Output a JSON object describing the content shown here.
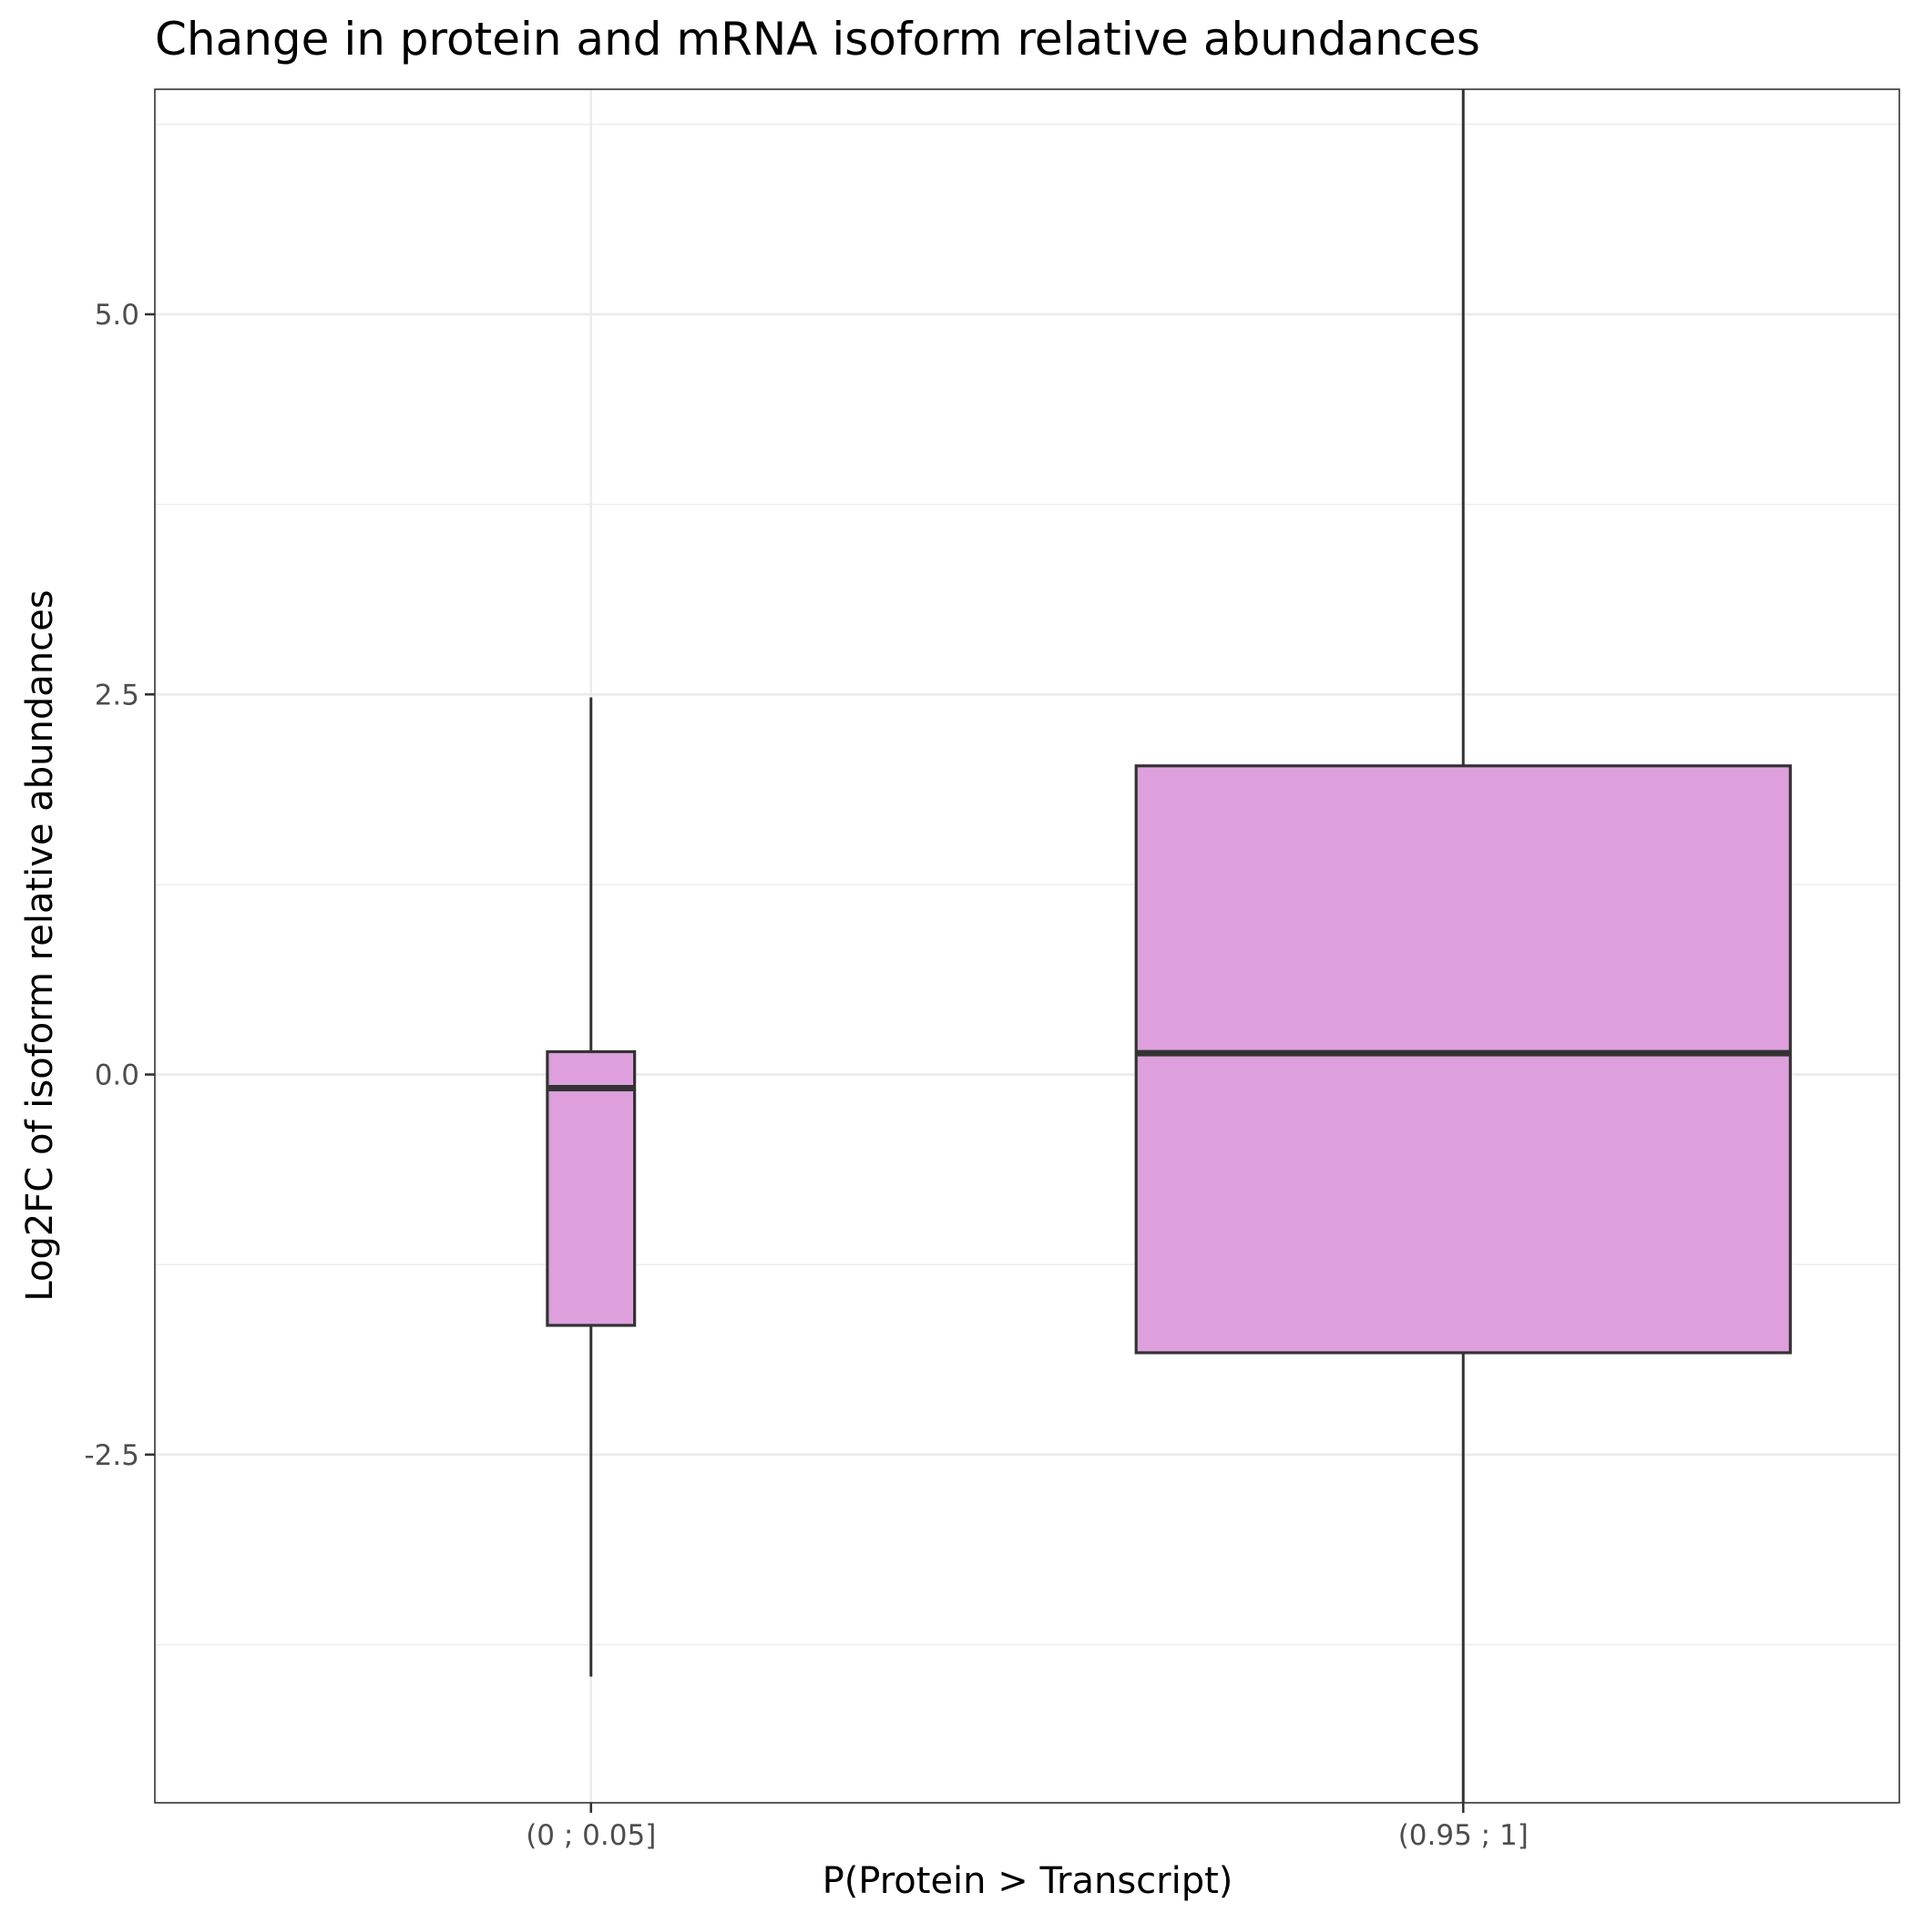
{
  "chart_data": {
    "type": "boxplot",
    "title": "Change in protein and mRNA isoform relative abundances",
    "xlabel": "P(Protein > Transcript)",
    "ylabel": "Log2FC of isoform relative abundances",
    "categories": [
      "(0 ; 0.05]",
      "(0.95 ; 1]"
    ],
    "ylim": [
      -4.79,
      6.48
    ],
    "yticks": [
      -2.5,
      0.0,
      2.5,
      5.0
    ],
    "ytick_labels": [
      "-2.5",
      "0.0",
      "2.5",
      "5.0"
    ],
    "grid": true,
    "boxes": [
      {
        "category": "(0 ; 0.05]",
        "whisker_low": -3.96,
        "q1": -1.65,
        "median": -0.09,
        "q3": 0.15,
        "whisker_high": 2.48,
        "relative_width": 0.1
      },
      {
        "category": "(0.95 ; 1]",
        "whisker_low": -4.79,
        "q1": -1.83,
        "median": 0.14,
        "q3": 2.03,
        "whisker_high": 6.48,
        "relative_width": 0.75
      }
    ],
    "fill_color": "#dda0dd",
    "line_color": "#333333"
  }
}
